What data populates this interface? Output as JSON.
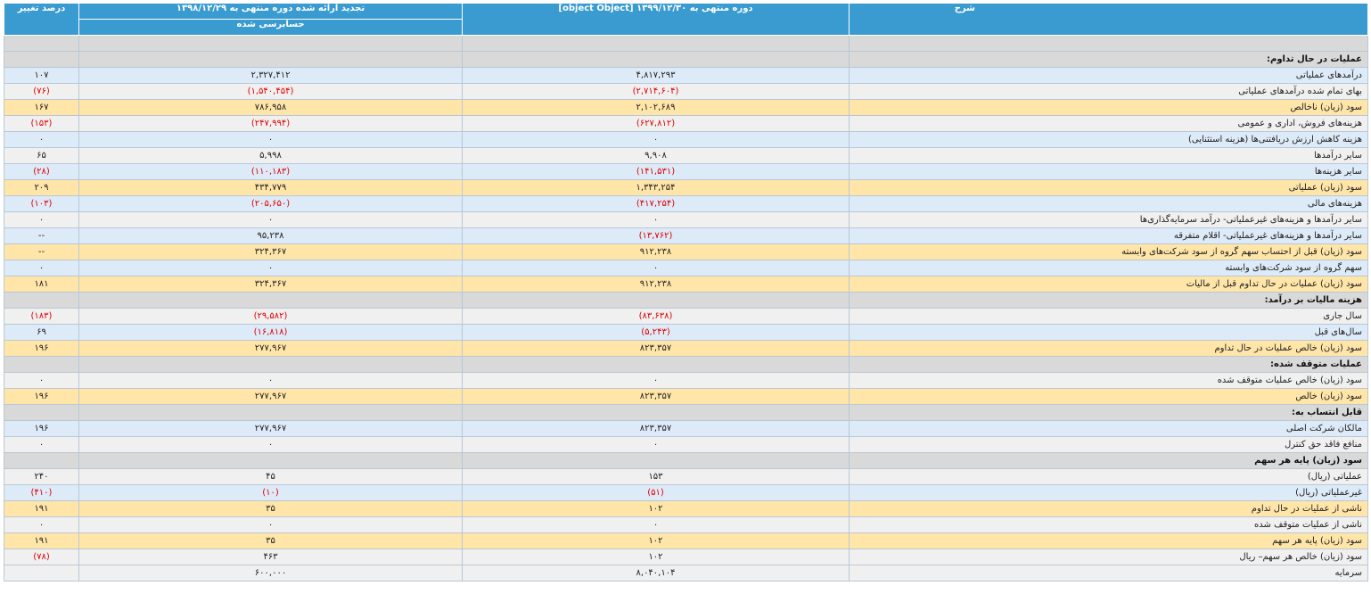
{
  "header": {
    "desc_label": "شرح",
    "current_period_label": "دوره منتهی به ۱۳۹۹/۱۲/۳۰ [object Object]",
    "prev_period_label": "تجدید ارائه شده دوره منتهی به ۱۳۹۸/۱۲/۲۹",
    "prev_period_sublabel": "حسابرسی شده",
    "change_label": "درصد تغییر"
  },
  "rows": [
    {
      "type": "section",
      "desc": "",
      "cur": "",
      "prev": "",
      "chg": ""
    },
    {
      "type": "section",
      "desc": "عملیات در حال تداوم:",
      "cur": "",
      "prev": "",
      "chg": ""
    },
    {
      "type": "blue",
      "desc": "درآمدهای عملیاتی",
      "cur": "۴,۸۱۷,۲۹۳",
      "prev": "۲,۳۲۷,۴۱۲",
      "chg": "۱۰۷"
    },
    {
      "type": "gray",
      "desc": "بهای تمام شده درآمدهای عملیاتی",
      "cur": "(۲,۷۱۴,۶۰۴)",
      "prev": "(۱,۵۴۰,۴۵۴)",
      "chg": "(۷۶)"
    },
    {
      "type": "orange",
      "desc": "سود (زیان) ناخالص",
      "cur": "۲,۱۰۲,۶۸۹",
      "prev": "۷۸۶,۹۵۸",
      "chg": "۱۶۷"
    },
    {
      "type": "gray",
      "desc": "هزینه‌های فروش، اداری و عمومی",
      "cur": "(۶۲۷,۸۱۲)",
      "prev": "(۲۴۷,۹۹۴)",
      "chg": "(۱۵۳)"
    },
    {
      "type": "blue",
      "desc": "هزینه کاهش ارزش دریافتنی‌ها (هزینه استثنایی)",
      "cur": "۰",
      "prev": "۰",
      "chg": "۰"
    },
    {
      "type": "gray",
      "desc": "سایر درآمدها",
      "cur": "۹,۹۰۸",
      "prev": "۵,۹۹۸",
      "chg": "۶۵"
    },
    {
      "type": "blue",
      "desc": "سایر هزینه‌ها",
      "cur": "(۱۴۱,۵۳۱)",
      "prev": "(۱۱۰,۱۸۳)",
      "chg": "(۲۸)"
    },
    {
      "type": "orange",
      "desc": "سود (زیان) عملیاتی",
      "cur": "۱,۳۴۳,۲۵۴",
      "prev": "۴۳۴,۷۷۹",
      "chg": "۲۰۹"
    },
    {
      "type": "blue",
      "desc": "هزینه‌های مالی",
      "cur": "(۴۱۷,۲۵۴)",
      "prev": "(۲۰۵,۶۵۰)",
      "chg": "(۱۰۳)"
    },
    {
      "type": "gray",
      "desc": "سایر درآمدها و هزینه‌های غیرعملیاتی- درآمد سرمایه‌گذاری‌ها",
      "cur": "۰",
      "prev": "۰",
      "chg": "۰"
    },
    {
      "type": "blue",
      "desc": "سایر درآمدها و هزینه‌های غیرعملیاتی- اقلام متفرقه",
      "cur": "(۱۳,۷۶۲)",
      "prev": "۹۵,۲۳۸",
      "chg": "--"
    },
    {
      "type": "orange",
      "desc": "سود (زیان) قبل از احتساب سهم گروه از سود شرکت‌های وابسته",
      "cur": "۹۱۲,۲۳۸",
      "prev": "۳۲۴,۳۶۷",
      "chg": "--"
    },
    {
      "type": "blue",
      "desc": "سهم گروه از سود شرکت‌های وابسته",
      "cur": "۰",
      "prev": "۰",
      "chg": "۰"
    },
    {
      "type": "orange",
      "desc": "سود (زیان) عملیات در حال تداوم قبل از مالیات",
      "cur": "۹۱۲,۲۳۸",
      "prev": "۳۲۴,۳۶۷",
      "chg": "۱۸۱"
    },
    {
      "type": "section",
      "desc": "هزینه مالیات بر درآمد:",
      "cur": "",
      "prev": "",
      "chg": ""
    },
    {
      "type": "gray",
      "desc": "سال جاری",
      "cur": "(۸۳,۶۳۸)",
      "prev": "(۲۹,۵۸۲)",
      "chg": "(۱۸۳)"
    },
    {
      "type": "blue",
      "desc": "سال‌های قبل",
      "cur": "(۵,۲۴۳)",
      "prev": "(۱۶,۸۱۸)",
      "chg": "۶۹"
    },
    {
      "type": "orange",
      "desc": "سود (زیان) خالص عملیات در حال تداوم",
      "cur": "۸۲۳,۳۵۷",
      "prev": "۲۷۷,۹۶۷",
      "chg": "۱۹۶"
    },
    {
      "type": "section",
      "desc": "عملیات متوقف شده:",
      "cur": "",
      "prev": "",
      "chg": ""
    },
    {
      "type": "gray",
      "desc": "سود (زیان) خالص عملیات متوقف شده",
      "cur": "۰",
      "prev": "۰",
      "chg": "۰"
    },
    {
      "type": "orange",
      "desc": "سود (زیان) خالص",
      "cur": "۸۲۳,۳۵۷",
      "prev": "۲۷۷,۹۶۷",
      "chg": "۱۹۶"
    },
    {
      "type": "section",
      "desc": "قابل انتساب به:",
      "cur": "",
      "prev": "",
      "chg": ""
    },
    {
      "type": "blue",
      "desc": "مالکان شرکت اصلی",
      "cur": "۸۲۳,۳۵۷",
      "prev": "۲۷۷,۹۶۷",
      "chg": "۱۹۶"
    },
    {
      "type": "gray",
      "desc": "منافع فاقد حق کنترل",
      "cur": "۰",
      "prev": "۰",
      "chg": "۰"
    },
    {
      "type": "section",
      "desc": "سود (زیان) پایه هر سهم",
      "cur": "",
      "prev": "",
      "chg": ""
    },
    {
      "type": "gray",
      "desc": "عملیاتی (ریال)",
      "cur": "۱۵۳",
      "prev": "۴۵",
      "chg": "۲۴۰"
    },
    {
      "type": "blue",
      "desc": "غیرعملیاتی (ریال)",
      "cur": "(۵۱)",
      "prev": "(۱۰)",
      "chg": "(۴۱۰)"
    },
    {
      "type": "orange",
      "desc": "ناشی از عملیات در حال تداوم",
      "cur": "۱۰۲",
      "prev": "۳۵",
      "chg": "۱۹۱"
    },
    {
      "type": "gray",
      "desc": "ناشی از عملیات متوقف شده",
      "cur": "۰",
      "prev": "۰",
      "chg": "۰"
    },
    {
      "type": "orange",
      "desc": "سود (زیان) پایه هر سهم",
      "cur": "۱۰۲",
      "prev": "۳۵",
      "chg": "۱۹۱"
    },
    {
      "type": "gray",
      "desc": "سود (زیان) خالص هر سهم– ریال",
      "cur": "۱۰۲",
      "prev": "۴۶۳",
      "chg": "(۷۸)"
    },
    {
      "type": "gray",
      "desc": "سرمایه",
      "cur": "۸,۰۴۰,۱۰۴",
      "prev": "۶۰۰,۰۰۰",
      "chg": ""
    }
  ]
}
